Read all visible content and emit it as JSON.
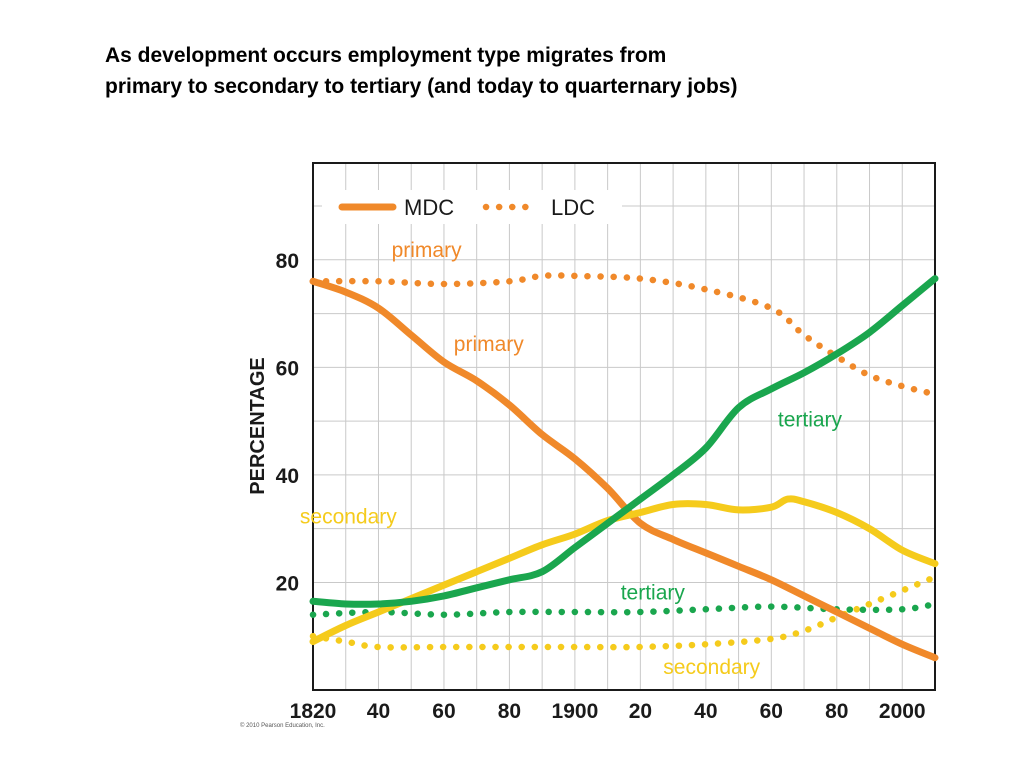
{
  "slide": {
    "title_line1": "As development occurs employment type migrates from",
    "title_line2": "primary to secondary to tertiary (and today to quarternary jobs)",
    "copyright": "© 2010 Pearson Education, Inc."
  },
  "chart_data": {
    "type": "line",
    "title": "",
    "xlabel": "",
    "ylabel": "PERCENTAGE",
    "xlim": [
      1820,
      2010
    ],
    "ylim": [
      0,
      98
    ],
    "x_ticks": [
      1820,
      1840,
      1860,
      1880,
      1900,
      1920,
      1940,
      1960,
      1980,
      2000
    ],
    "x_tick_labels": [
      "1820",
      "40",
      "60",
      "80",
      "1900",
      "20",
      "40",
      "60",
      "80",
      "2000"
    ],
    "y_ticks": [
      20,
      40,
      60,
      80
    ],
    "y_tick_labels": [
      "20",
      "40",
      "60",
      "80"
    ],
    "grid": true,
    "legend_position": "top-left",
    "legend": [
      {
        "label": "MDC",
        "style": "solid"
      },
      {
        "label": "LDC",
        "style": "dotted"
      }
    ],
    "colors": {
      "primary": "#f0892a",
      "secondary": "#f5cb1c",
      "tertiary": "#1aa64e"
    },
    "series": [
      {
        "group": "MDC",
        "sector": "primary",
        "style": "solid",
        "x": [
          1820,
          1830,
          1840,
          1850,
          1860,
          1870,
          1880,
          1890,
          1900,
          1910,
          1920,
          1930,
          1940,
          1950,
          1960,
          1970,
          1980,
          1990,
          2000,
          2010
        ],
        "y": [
          76,
          74,
          71,
          66,
          61,
          57.5,
          53,
          47.5,
          43,
          37.5,
          31,
          28,
          25.5,
          23,
          20.5,
          17.5,
          14.5,
          11.5,
          8.5,
          6
        ]
      },
      {
        "group": "MDC",
        "sector": "secondary",
        "style": "solid",
        "x": [
          1820,
          1830,
          1840,
          1850,
          1860,
          1870,
          1880,
          1890,
          1900,
          1910,
          1920,
          1930,
          1940,
          1950,
          1960,
          1965,
          1970,
          1980,
          1990,
          2000,
          2010
        ],
        "y": [
          9,
          12,
          14.5,
          17,
          19.5,
          22,
          24.5,
          27,
          29,
          31.5,
          33,
          34.5,
          34.5,
          33.5,
          34,
          35.5,
          35,
          33,
          30,
          26,
          23.5
        ]
      },
      {
        "group": "MDC",
        "sector": "tertiary",
        "style": "solid",
        "x": [
          1820,
          1830,
          1840,
          1850,
          1860,
          1870,
          1880,
          1890,
          1900,
          1910,
          1920,
          1930,
          1940,
          1950,
          1960,
          1970,
          1980,
          1990,
          2000,
          2010
        ],
        "y": [
          16.5,
          16,
          16,
          16.5,
          17.5,
          19,
          20.5,
          22,
          26.5,
          31,
          35.5,
          40,
          45,
          52.5,
          56,
          59,
          62.5,
          66.5,
          71.5,
          76.5
        ]
      },
      {
        "group": "LDC",
        "sector": "primary",
        "style": "dotted",
        "x": [
          1820,
          1840,
          1860,
          1880,
          1890,
          1900,
          1920,
          1940,
          1960,
          1970,
          1980,
          1990,
          2000,
          2010
        ],
        "y": [
          76,
          76,
          75.5,
          76,
          77,
          77,
          76.5,
          74.5,
          71,
          66,
          62,
          58.5,
          56.5,
          55
        ]
      },
      {
        "group": "LDC",
        "sector": "secondary",
        "style": "dotted",
        "x": [
          1820,
          1830,
          1840,
          1860,
          1880,
          1900,
          1920,
          1940,
          1960,
          1970,
          1980,
          1990,
          2000,
          2010
        ],
        "y": [
          10,
          9,
          8,
          8,
          8,
          8,
          8,
          8.5,
          9.5,
          11,
          13.5,
          16,
          18.5,
          21
        ]
      },
      {
        "group": "LDC",
        "sector": "tertiary",
        "style": "dotted",
        "x": [
          1820,
          1840,
          1860,
          1880,
          1900,
          1920,
          1940,
          1960,
          1980,
          2000,
          2010
        ],
        "y": [
          14,
          14.5,
          14,
          14.5,
          14.5,
          14.5,
          15,
          15.5,
          15,
          15,
          16
        ]
      }
    ],
    "annotations": [
      {
        "text": "primary",
        "color": "#f0892a",
        "x": 1844,
        "y": 80.5
      },
      {
        "text": "primary",
        "color": "#f0892a",
        "x": 1863,
        "y": 63
      },
      {
        "text": "tertiary",
        "color": "#1aa64e",
        "x": 1962,
        "y": 49
      },
      {
        "text": "secondary",
        "color": "#f5cb1c",
        "x": 1816,
        "y": 31
      },
      {
        "text": "tertiary",
        "color": "#1aa64e",
        "x": 1914,
        "y": 16.8
      },
      {
        "text": "secondary",
        "color": "#f5cb1c",
        "x": 1927,
        "y": 3
      }
    ]
  }
}
